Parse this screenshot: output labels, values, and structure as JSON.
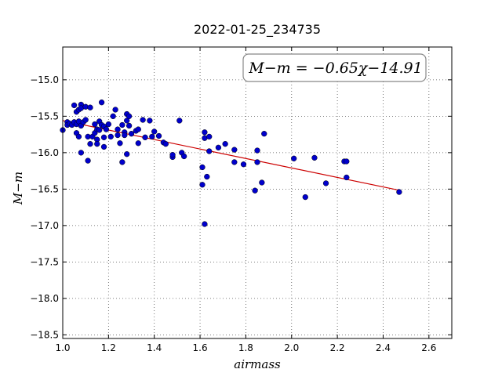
{
  "chart_data": {
    "type": "scatter",
    "title": "2022-01-25_234735",
    "xlabel": "airmass",
    "ylabel": "M−m",
    "xlim": [
      1.0,
      2.7
    ],
    "ylim": [
      -18.55,
      -14.55
    ],
    "y_inverted_orientation": "values decrease downward",
    "x_ticks": [
      "1.0",
      "1.2",
      "1.4",
      "1.6",
      "1.8",
      "2.0",
      "2.2",
      "2.4",
      "2.6"
    ],
    "y_ticks": [
      "−15.0",
      "−15.5",
      "−16.0",
      "−16.5",
      "−17.0",
      "−17.5",
      "−18.0",
      "−18.5"
    ],
    "grid": true,
    "annotation": "M−m = −0.65χ−14.91",
    "annotation_position": "top-right",
    "point_color": "#0000cc",
    "fit_color": "#cc0000",
    "fit": {
      "slope": -0.65,
      "intercept": -14.91,
      "x_range": [
        1.0,
        2.47
      ]
    },
    "points": [
      [
        1.0,
        -15.69
      ],
      [
        1.02,
        -15.58
      ],
      [
        1.02,
        -15.62
      ],
      [
        1.03,
        -15.6
      ],
      [
        1.04,
        -15.62
      ],
      [
        1.05,
        -15.58
      ],
      [
        1.05,
        -15.35
      ],
      [
        1.06,
        -15.44
      ],
      [
        1.06,
        -15.61
      ],
      [
        1.06,
        -15.73
      ],
      [
        1.07,
        -15.57
      ],
      [
        1.07,
        -15.41
      ],
      [
        1.07,
        -15.78
      ],
      [
        1.08,
        -15.34
      ],
      [
        1.08,
        -15.39
      ],
      [
        1.08,
        -15.63
      ],
      [
        1.08,
        -16.0
      ],
      [
        1.09,
        -15.58
      ],
      [
        1.1,
        -15.55
      ],
      [
        1.1,
        -15.37
      ],
      [
        1.11,
        -15.78
      ],
      [
        1.11,
        -16.11
      ],
      [
        1.12,
        -15.38
      ],
      [
        1.12,
        -15.88
      ],
      [
        1.13,
        -15.78
      ],
      [
        1.14,
        -15.61
      ],
      [
        1.14,
        -15.73
      ],
      [
        1.15,
        -15.82
      ],
      [
        1.15,
        -15.68
      ],
      [
        1.15,
        -15.88
      ],
      [
        1.16,
        -15.57
      ],
      [
        1.16,
        -15.69
      ],
      [
        1.17,
        -15.31
      ],
      [
        1.17,
        -15.62
      ],
      [
        1.18,
        -15.64
      ],
      [
        1.18,
        -15.79
      ],
      [
        1.18,
        -15.92
      ],
      [
        1.19,
        -15.68
      ],
      [
        1.2,
        -15.61
      ],
      [
        1.21,
        -15.78
      ],
      [
        1.22,
        -15.5
      ],
      [
        1.23,
        -15.41
      ],
      [
        1.24,
        -15.76
      ],
      [
        1.24,
        -15.68
      ],
      [
        1.25,
        -15.87
      ],
      [
        1.26,
        -15.62
      ],
      [
        1.26,
        -16.13
      ],
      [
        1.27,
        -15.72
      ],
      [
        1.27,
        -15.76
      ],
      [
        1.28,
        -15.47
      ],
      [
        1.28,
        -15.56
      ],
      [
        1.28,
        -16.02
      ],
      [
        1.29,
        -15.63
      ],
      [
        1.29,
        -15.5
      ],
      [
        1.3,
        -15.74
      ],
      [
        1.32,
        -15.7
      ],
      [
        1.33,
        -15.68
      ],
      [
        1.33,
        -15.87
      ],
      [
        1.35,
        -15.55
      ],
      [
        1.36,
        -15.79
      ],
      [
        1.38,
        -15.56
      ],
      [
        1.39,
        -15.78
      ],
      [
        1.4,
        -15.71
      ],
      [
        1.42,
        -15.77
      ],
      [
        1.44,
        -15.86
      ],
      [
        1.45,
        -15.88
      ],
      [
        1.48,
        -16.06
      ],
      [
        1.48,
        -16.03
      ],
      [
        1.51,
        -15.56
      ],
      [
        1.52,
        -16.0
      ],
      [
        1.53,
        -16.05
      ],
      [
        1.61,
        -16.2
      ],
      [
        1.61,
        -16.44
      ],
      [
        1.62,
        -15.72
      ],
      [
        1.62,
        -15.8
      ],
      [
        1.62,
        -16.98
      ],
      [
        1.63,
        -16.33
      ],
      [
        1.64,
        -15.98
      ],
      [
        1.64,
        -15.78
      ],
      [
        1.68,
        -15.93
      ],
      [
        1.71,
        -15.88
      ],
      [
        1.75,
        -15.96
      ],
      [
        1.75,
        -16.13
      ],
      [
        1.79,
        -16.16
      ],
      [
        1.84,
        -16.52
      ],
      [
        1.85,
        -15.97
      ],
      [
        1.85,
        -16.13
      ],
      [
        1.87,
        -16.41
      ],
      [
        1.88,
        -15.74
      ],
      [
        2.01,
        -16.08
      ],
      [
        2.06,
        -16.61
      ],
      [
        2.1,
        -16.07
      ],
      [
        2.15,
        -16.42
      ],
      [
        2.23,
        -16.12
      ],
      [
        2.24,
        -16.12
      ],
      [
        2.24,
        -16.34
      ],
      [
        2.47,
        -16.54
      ]
    ]
  }
}
